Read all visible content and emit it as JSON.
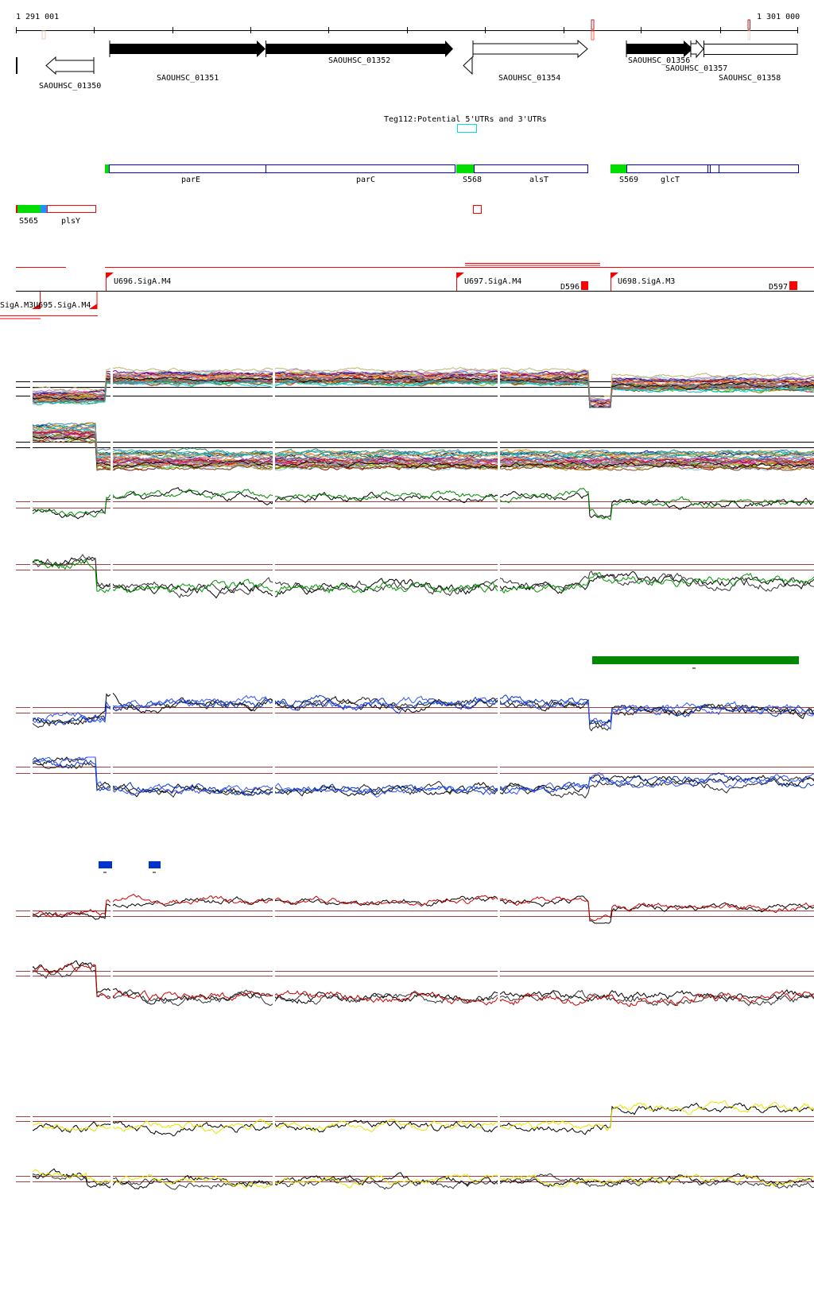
{
  "ruler": {
    "start_label": "1 291 001",
    "end_label": "1 301 000",
    "start": 1291001,
    "end": 1301000
  },
  "genes": [
    {
      "id": "SAOUHSC_01350",
      "strand": "-"
    },
    {
      "id": "SAOUHSC_01351",
      "strand": "+"
    },
    {
      "id": "SAOUHSC_01352",
      "strand": "+"
    },
    {
      "id": "SAOUHSC_01354",
      "strand": "+"
    },
    {
      "id": "SAOUHSC_01356",
      "strand": "+"
    },
    {
      "id": "SAOUHSC_01357",
      "strand": "+"
    },
    {
      "id": "SAOUHSC_01358",
      "strand": "+"
    }
  ],
  "utr_track": {
    "label": "Teg112:Potential 5'UTRs and 3'UTRs"
  },
  "features": [
    "parE",
    "parC",
    "S568",
    "alsT",
    "S569",
    "glcT",
    "S565",
    "plsY"
  ],
  "promoters": {
    "forward": [
      "U696.SigA.M4",
      "U697.SigA.M4",
      "U698.SigA.M3"
    ],
    "terminators": [
      "D596",
      "D597"
    ],
    "reverse": "SigA.M3U695.SigA.M4"
  },
  "colors": {
    "accent_red": "#ff0000",
    "feature_blue": "#0000cc",
    "srna_green": "#00dd00",
    "cyan": "#00dddd",
    "bar_green": "#008800",
    "bar_blue": "#0033cc"
  },
  "chart_data": {
    "type": "line",
    "x_range": [
      1291001,
      1301000
    ],
    "tracks": [
      {
        "name": "expression-multi-plus",
        "series_count": 30,
        "profile": [
          [
            1291001,
            0.3
          ],
          [
            1292150,
            0.75
          ],
          [
            1298335,
            0.1
          ],
          [
            1298625,
            0.6
          ]
        ]
      },
      {
        "name": "expression-multi-minus",
        "series_count": 30,
        "profile": [
          [
            1291001,
            0.75
          ],
          [
            1292022,
            0.2
          ]
        ]
      },
      {
        "name": "green-plus",
        "colors": [
          "#000000",
          "#008800"
        ],
        "profile": [
          [
            1291001,
            0.2
          ],
          [
            1292150,
            0.65
          ],
          [
            1298335,
            0.1
          ],
          [
            1298625,
            0.45
          ]
        ]
      },
      {
        "name": "green-minus",
        "colors": [
          "#000000",
          "#333333",
          "#009900"
        ],
        "profile": [
          [
            1291001,
            0.75
          ],
          [
            1292022,
            0.25
          ],
          [
            1298335,
            0.35
          ]
        ]
      },
      {
        "name": "blue-plus",
        "colors": [
          "#000000",
          "#222222",
          "#0033cc",
          "#3355ff"
        ],
        "profile": [
          [
            1291001,
            0.25
          ],
          [
            1292150,
            0.6
          ],
          [
            1298335,
            0.1
          ],
          [
            1298625,
            0.45
          ]
        ]
      },
      {
        "name": "blue-minus",
        "colors": [
          "#000000",
          "#222222",
          "#0033cc",
          "#3355ff"
        ],
        "profile": [
          [
            1291001,
            0.85
          ],
          [
            1292022,
            0.2
          ],
          [
            1298335,
            0.4
          ]
        ]
      },
      {
        "name": "red-plus",
        "colors": [
          "#000000",
          "#cc0000"
        ],
        "profile": [
          [
            1291001,
            0.25
          ],
          [
            1292150,
            0.65
          ],
          [
            1298335,
            0.1
          ],
          [
            1298625,
            0.45
          ]
        ]
      },
      {
        "name": "red-minus",
        "colors": [
          "#000000",
          "#333333",
          "#cc0000"
        ],
        "profile": [
          [
            1291001,
            0.8
          ],
          [
            1292022,
            0.2
          ]
        ]
      },
      {
        "name": "yellow-plus",
        "colors": [
          "#000000",
          "#e6e600"
        ],
        "profile": [
          [
            1291001,
            0.3
          ],
          [
            1298625,
            0.75
          ]
        ]
      },
      {
        "name": "yellow-minus",
        "colors": [
          "#000000",
          "#333333",
          "#e6e600"
        ],
        "profile": [
          [
            1291001,
            0.7
          ],
          [
            1291900,
            0.55
          ]
        ]
      }
    ]
  }
}
